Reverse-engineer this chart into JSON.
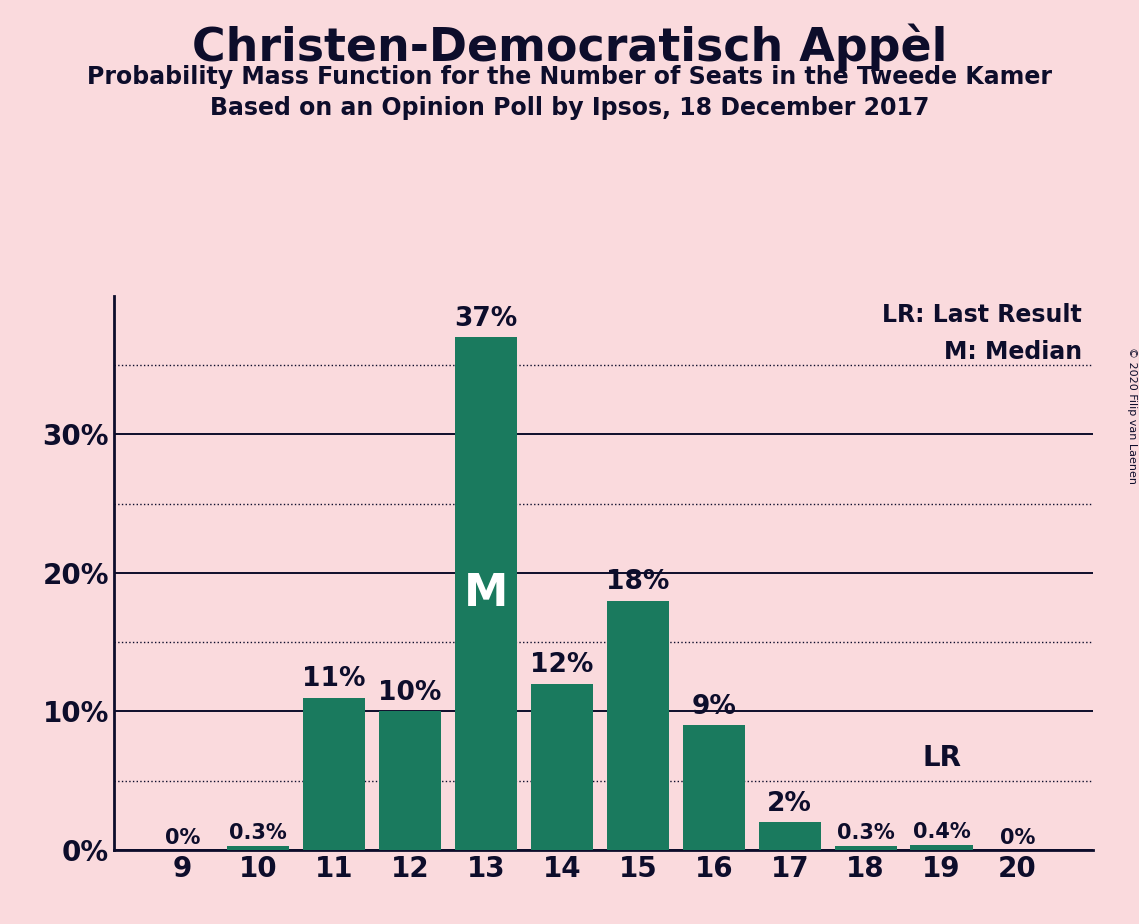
{
  "title": "Christen-Democratisch Appèl",
  "subtitle1": "Probability Mass Function for the Number of Seats in the Tweede Kamer",
  "subtitle2": "Based on an Opinion Poll by Ipsos, 18 December 2017",
  "copyright": "© 2020 Filip van Laenen",
  "seats": [
    9,
    10,
    11,
    12,
    13,
    14,
    15,
    16,
    17,
    18,
    19,
    20
  ],
  "probabilities": [
    0.0,
    0.3,
    11.0,
    10.0,
    37.0,
    12.0,
    18.0,
    9.0,
    2.0,
    0.3,
    0.4,
    0.0
  ],
  "bar_color": "#1a7a5e",
  "background_color": "#fadadd",
  "text_color": "#0d0d2b",
  "median_seat": 13,
  "lr_seat": 19,
  "legend_lr": "LR: Last Result",
  "legend_m": "M: Median",
  "yticks": [
    0,
    10,
    20,
    30
  ],
  "ytick_dotted": [
    5,
    15,
    25,
    35
  ],
  "ylim": [
    0,
    40
  ],
  "bar_labels": [
    "0%",
    "0.3%",
    "11%",
    "10%",
    "37%",
    "12%",
    "18%",
    "9%",
    "2%",
    "0.3%",
    "0.4%",
    "0%"
  ],
  "bar_label_fontsize_small": 15,
  "bar_label_fontsize_large": 19
}
